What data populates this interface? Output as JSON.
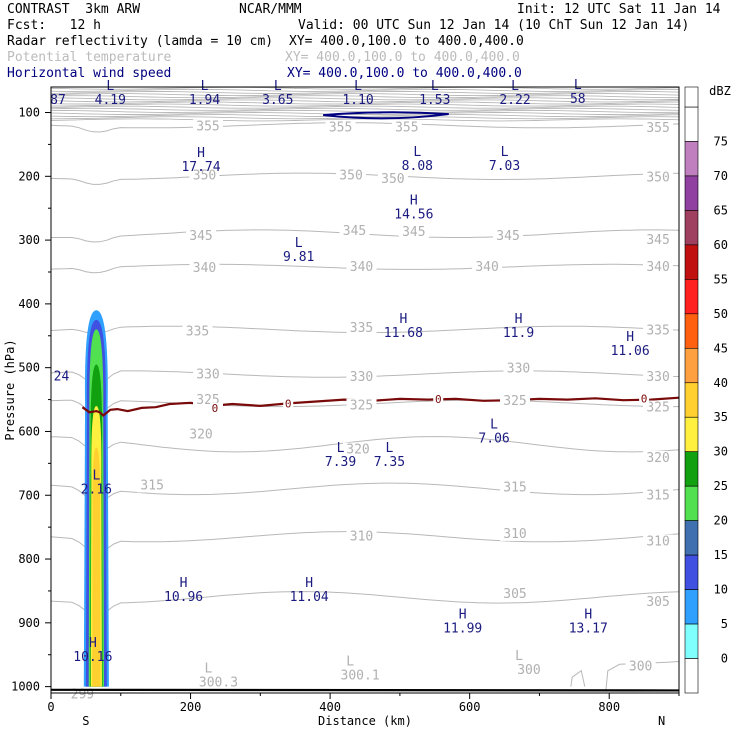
{
  "header": {
    "model": "CONTRAST  3km ARW",
    "org": "NCAR/MMM",
    "init": "Init: 12 UTC Sat 11 Jan 14",
    "fcst": "Fcst:   12 h",
    "valid": "Valid: 00 UTC Sun 12 Jan 14 (10 ChT Sun 12 Jan 14)",
    "fields": [
      {
        "name": "Radar reflectivity (lamda = 10 cm)",
        "xy": "XY= 400.0,100.0 to 400.0,400.0",
        "color": "#000000"
      },
      {
        "name": "Potential temperature",
        "xy": "XY= 400.0,100.0 to 400.0,400.0",
        "color": "#bbbbbb"
      },
      {
        "name": "Horizontal wind speed",
        "xy": "XY= 400.0,100.0 to 400.0,400.0",
        "color": "#000080"
      }
    ]
  },
  "chart_data": {
    "type": "cross-section",
    "xlabel": "Distance (km)",
    "ylabel": "Pressure (hPa)",
    "xlim": [
      0,
      900
    ],
    "ylim": [
      1010,
      60
    ],
    "x_ticks": [
      0,
      200,
      400,
      600,
      800
    ],
    "y_ticks": [
      100,
      200,
      300,
      400,
      500,
      600,
      700,
      800,
      900,
      1000
    ],
    "endpoints": {
      "left": "S",
      "right": "N"
    },
    "colorbar": {
      "unit": "dBZ",
      "levels": [
        "75",
        "70",
        "65",
        "60",
        "55",
        "50",
        "45",
        "40",
        "35",
        "30",
        "25",
        "20",
        "15",
        "10",
        "5",
        "0"
      ],
      "colors": [
        "#ffffff",
        "#c080c0",
        "#9040a0",
        "#a04060",
        "#c01010",
        "#ff2020",
        "#ff6010",
        "#ffa040",
        "#ffd030",
        "#fff040",
        "#10a010",
        "#50e050",
        "#4070b0",
        "#4050e0",
        "#30a0ff",
        "#80ffff",
        "#ffffff"
      ]
    },
    "theta_labels": [
      {
        "text": "355",
        "x": 225,
        "p": 120
      },
      {
        "text": "355",
        "x": 415,
        "p": 122
      },
      {
        "text": "355",
        "x": 510,
        "p": 122
      },
      {
        "text": "355",
        "x": 870,
        "p": 123
      },
      {
        "text": "350",
        "x": 220,
        "p": 197
      },
      {
        "text": "350",
        "x": 430,
        "p": 197
      },
      {
        "text": "350",
        "x": 490,
        "p": 203
      },
      {
        "text": "350",
        "x": 870,
        "p": 200
      },
      {
        "text": "345",
        "x": 215,
        "p": 292
      },
      {
        "text": "345",
        "x": 435,
        "p": 284
      },
      {
        "text": "345",
        "x": 520,
        "p": 286
      },
      {
        "text": "345",
        "x": 655,
        "p": 292
      },
      {
        "text": "345",
        "x": 870,
        "p": 298
      },
      {
        "text": "340",
        "x": 220,
        "p": 342
      },
      {
        "text": "340",
        "x": 445,
        "p": 341
      },
      {
        "text": "340",
        "x": 625,
        "p": 341
      },
      {
        "text": "340",
        "x": 870,
        "p": 341
      },
      {
        "text": "335",
        "x": 210,
        "p": 442
      },
      {
        "text": "335",
        "x": 445,
        "p": 436
      },
      {
        "text": "335",
        "x": 870,
        "p": 440
      },
      {
        "text": "330",
        "x": 225,
        "p": 509
      },
      {
        "text": "330",
        "x": 445,
        "p": 513
      },
      {
        "text": "330",
        "x": 670,
        "p": 500
      },
      {
        "text": "330",
        "x": 870,
        "p": 513
      },
      {
        "text": "325",
        "x": 225,
        "p": 549
      },
      {
        "text": "325",
        "x": 445,
        "p": 558
      },
      {
        "text": "325",
        "x": 665,
        "p": 551
      },
      {
        "text": "325",
        "x": 870,
        "p": 561
      },
      {
        "text": "320",
        "x": 215,
        "p": 603
      },
      {
        "text": "320",
        "x": 440,
        "p": 627
      },
      {
        "text": "320",
        "x": 870,
        "p": 640
      },
      {
        "text": "315",
        "x": 145,
        "p": 683
      },
      {
        "text": "315",
        "x": 665,
        "p": 686
      },
      {
        "text": "315",
        "x": 870,
        "p": 699
      },
      {
        "text": "310",
        "x": 445,
        "p": 763
      },
      {
        "text": "310",
        "x": 665,
        "p": 759
      },
      {
        "text": "310",
        "x": 870,
        "p": 771
      },
      {
        "text": "305",
        "x": 665,
        "p": 853
      },
      {
        "text": "305",
        "x": 870,
        "p": 866
      },
      {
        "text": "300",
        "x": 845,
        "p": 967
      },
      {
        "text": "299",
        "x": 45,
        "p": 1011
      }
    ],
    "theta_lows": [
      {
        "text": "300.3",
        "x": 240,
        "p": 1000
      },
      {
        "text": "300.1",
        "x": 443,
        "p": 989
      },
      {
        "text": "300",
        "x": 685,
        "p": 980
      }
    ],
    "wind_extrema": [
      {
        "type": "L",
        "value": "4.19",
        "x": 85,
        "p": 87
      },
      {
        "type": "L",
        "value": "1.94",
        "x": 220,
        "p": 87
      },
      {
        "type": "L",
        "value": "3.65",
        "x": 325,
        "p": 87
      },
      {
        "type": "L",
        "value": "1.10",
        "x": 440,
        "p": 87
      },
      {
        "type": "L",
        "value": "1.53",
        "x": 550,
        "p": 87
      },
      {
        "type": "L",
        "value": "2.22",
        "x": 665,
        "p": 87
      },
      {
        "type": "L",
        "value": "58",
        "x": 755,
        "p": 85
      },
      {
        "type": "",
        "value": "87",
        "x": 10,
        "p": 87
      },
      {
        "type": "H",
        "value": "17.74",
        "x": 215,
        "p": 192
      },
      {
        "type": "L",
        "value": "8.08",
        "x": 525,
        "p": 190
      },
      {
        "type": "L",
        "value": "7.03",
        "x": 650,
        "p": 190
      },
      {
        "type": "H",
        "value": "14.56",
        "x": 520,
        "p": 266
      },
      {
        "type": "L",
        "value": "9.81",
        "x": 355,
        "p": 333
      },
      {
        "type": "H",
        "value": "11.68",
        "x": 505,
        "p": 452
      },
      {
        "type": "H",
        "value": "11.9",
        "x": 670,
        "p": 452
      },
      {
        "type": "H",
        "value": "11.06",
        "x": 830,
        "p": 480
      },
      {
        "type": "",
        "value": "24",
        "x": 15,
        "p": 520
      },
      {
        "type": "L",
        "value": "7.06",
        "x": 635,
        "p": 617
      },
      {
        "type": "L",
        "value": "7.39",
        "x": 415,
        "p": 654
      },
      {
        "type": "L",
        "value": "7.35",
        "x": 485,
        "p": 654
      },
      {
        "type": "L",
        "value": "2.16",
        "x": 65,
        "p": 697
      },
      {
        "type": "H",
        "value": "10.96",
        "x": 190,
        "p": 866
      },
      {
        "type": "H",
        "value": "11.04",
        "x": 370,
        "p": 866
      },
      {
        "type": "H",
        "value": "11.99",
        "x": 590,
        "p": 915
      },
      {
        "type": "H",
        "value": "13.17",
        "x": 770,
        "p": 915
      },
      {
        "type": "H",
        "value": "10.16",
        "x": 60,
        "p": 960
      }
    ],
    "zero_contour_labels": [
      {
        "text": "0",
        "x": 235,
        "p": 563
      },
      {
        "text": "0",
        "x": 340,
        "p": 556
      },
      {
        "text": "0",
        "x": 555,
        "p": 549
      },
      {
        "text": "0",
        "x": 850,
        "p": 548
      }
    ],
    "zero_contour": {
      "x": [
        45,
        55,
        65,
        70,
        75,
        85,
        95,
        110,
        130,
        150,
        170,
        200,
        230,
        260,
        300,
        340,
        380,
        420,
        460,
        500,
        540,
        580,
        620,
        660,
        700,
        740,
        780,
        820,
        860,
        900
      ],
      "p": [
        562,
        570,
        568,
        570,
        575,
        566,
        565,
        568,
        563,
        562,
        557,
        555,
        560,
        557,
        560,
        556,
        553,
        550,
        552,
        549,
        550,
        549,
        552,
        551,
        549,
        550,
        548,
        551,
        550,
        547
      ]
    },
    "reflectivity_column": {
      "center_x": 65,
      "base_p": 1000,
      "layers": [
        {
          "dbz": 5,
          "half_width_km": 18,
          "top_p": 410
        },
        {
          "dbz": 10,
          "half_width_km": 15,
          "top_p": 425
        },
        {
          "dbz": 20,
          "half_width_km": 11,
          "top_p": 440
        },
        {
          "dbz": 25,
          "half_width_km": 9,
          "top_p": 495
        },
        {
          "dbz": 30,
          "half_width_km": 8,
          "top_p": 560
        },
        {
          "dbz": 35,
          "half_width_km": 6,
          "top_p": 625
        }
      ]
    },
    "jet_low_contour": {
      "x_range": [
        390,
        570
      ],
      "p": 104,
      "color": "#000080"
    }
  }
}
